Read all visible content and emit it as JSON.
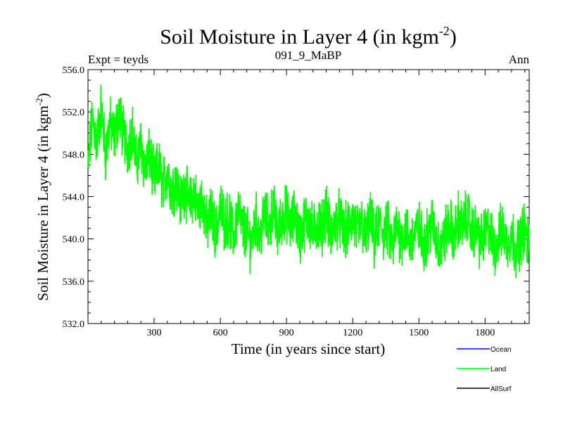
{
  "chart_data": {
    "type": "line",
    "title": "Soil Moisture in Layer 4 (in kgm",
    "title_sup": "-2",
    "title_close": ")",
    "left_label": "Expt = teyds",
    "center_label": "091_9_MaBP",
    "right_label": "Ann",
    "xlabel": "Time (in years since start)",
    "ylabel": "Soil Moisture in Layer 4 (in kgm",
    "ylabel_sup": "-2",
    "ylabel_close": ")",
    "xlim": [
      0,
      2000
    ],
    "ylim": [
      532,
      556
    ],
    "x_ticks": [
      300,
      600,
      900,
      1200,
      1500,
      1800
    ],
    "x_tick_labels": [
      "300",
      "600",
      "900",
      "1200",
      "1500",
      "1800"
    ],
    "y_ticks": [
      532,
      536,
      540,
      544,
      548,
      552,
      556
    ],
    "y_tick_labels": [
      "532.0",
      "536.0",
      "540.0",
      "544.0",
      "548.0",
      "552.0",
      "556.0"
    ],
    "legend_position": "bottom-right, outside plot",
    "series": [
      {
        "name": "Ocean",
        "color": "#0000ff",
        "x": [],
        "values": []
      },
      {
        "name": "Land",
        "color": "#00ff00",
        "x": [
          0,
          20,
          40,
          60,
          80,
          100,
          120,
          140,
          160,
          180,
          200,
          220,
          240,
          260,
          280,
          300,
          320,
          340,
          360,
          380,
          400,
          420,
          440,
          460,
          480,
          500,
          520,
          540,
          560,
          580,
          600,
          620,
          640,
          660,
          680,
          700,
          720,
          740,
          760,
          780,
          800,
          820,
          840,
          860,
          880,
          900,
          920,
          940,
          960,
          980,
          1000,
          1020,
          1040,
          1060,
          1080,
          1100,
          1120,
          1140,
          1160,
          1180,
          1200,
          1220,
          1240,
          1260,
          1280,
          1300,
          1320,
          1340,
          1360,
          1380,
          1400,
          1420,
          1440,
          1460,
          1480,
          1500,
          1520,
          1540,
          1560,
          1580,
          1600,
          1620,
          1640,
          1660,
          1680,
          1700,
          1720,
          1740,
          1760,
          1780,
          1800,
          1820,
          1840,
          1860,
          1880,
          1900,
          1920,
          1940,
          1960,
          1980,
          2000
        ],
        "values": [
          546.5,
          551.5,
          549.0,
          552.5,
          548.0,
          551.0,
          549.5,
          552.0,
          550.0,
          548.5,
          550.5,
          547.0,
          549.0,
          546.5,
          548.0,
          545.5,
          547.0,
          545.0,
          546.5,
          544.5,
          545.5,
          543.5,
          545.0,
          543.0,
          544.5,
          542.5,
          544.0,
          541.0,
          542.5,
          540.5,
          543.0,
          541.5,
          542.0,
          540.0,
          543.0,
          541.0,
          540.5,
          539.5,
          542.0,
          540.0,
          542.5,
          541.0,
          543.0,
          540.5,
          542.0,
          542.5,
          541.0,
          542.5,
          540.0,
          541.5,
          542.0,
          540.5,
          541.5,
          541.0,
          543.0,
          540.0,
          541.5,
          542.0,
          540.5,
          541.0,
          542.0,
          540.5,
          541.5,
          540.0,
          542.0,
          539.5,
          541.5,
          540.5,
          541.0,
          539.0,
          541.5,
          540.0,
          541.0,
          539.5,
          540.5,
          541.0,
          539.5,
          540.5,
          541.5,
          540.0,
          539.0,
          540.5,
          541.5,
          540.0,
          542.0,
          541.0,
          542.5,
          540.5,
          541.0,
          539.5,
          540.5,
          541.0,
          539.0,
          540.0,
          541.0,
          539.5,
          540.5,
          539.0,
          540.0,
          541.0,
          539.0
        ]
      },
      {
        "name": "AllSurf",
        "color": "#000000",
        "x": [],
        "values": []
      }
    ]
  }
}
